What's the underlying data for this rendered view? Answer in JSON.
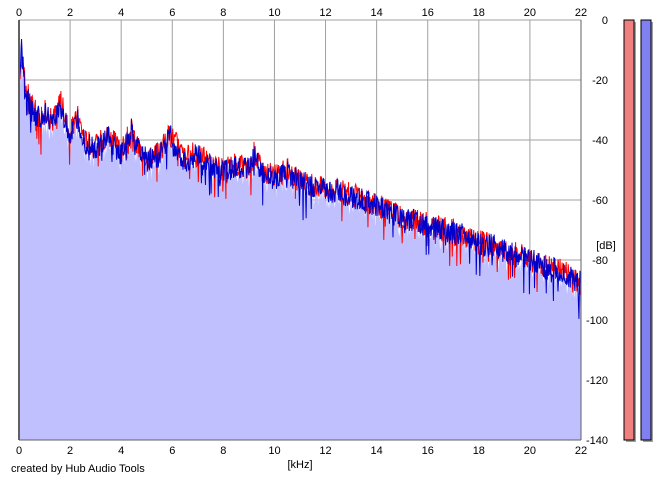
{
  "credit": "created by Hub Audio Tools",
  "chart_data": {
    "type": "line",
    "xlabel": "[kHz]",
    "ylabel": "[dB]",
    "xlim": [
      0,
      22
    ],
    "ylim": [
      -140,
      0
    ],
    "x_ticks": [
      0,
      2,
      4,
      6,
      8,
      10,
      12,
      14,
      16,
      18,
      20,
      22
    ],
    "x_tick_labels": [
      "0",
      "2",
      "4",
      "6",
      "8",
      "10",
      "12",
      "14",
      "16",
      "18",
      "20",
      "22"
    ],
    "y_ticks": [
      0,
      -20,
      -40,
      -60,
      -80,
      -100,
      -120,
      -140
    ],
    "y_tick_labels": [
      "0",
      "-20",
      "-40",
      "-60",
      "-80",
      "-100",
      "-120",
      "-140"
    ],
    "x_axis_top": true,
    "grid": true,
    "fill_color": "#c0c0ff",
    "series": [
      {
        "color": "#ff0000",
        "x": [
          0,
          0.1,
          0.25,
          0.5,
          0.8,
          1,
          1.3,
          1.6,
          2,
          2.3,
          2.6,
          3,
          3.5,
          4,
          4.4,
          4.6,
          5,
          5.5,
          5.9,
          6.1,
          6.5,
          7,
          7.5,
          8,
          8.5,
          9,
          9.2,
          9.5,
          10,
          10.5,
          11,
          11.5,
          12,
          12.5,
          13,
          13.5,
          14,
          14.5,
          15,
          15.5,
          16,
          16.5,
          17,
          17.5,
          18,
          18.5,
          19,
          19.5,
          20,
          20.5,
          21,
          21.5,
          22
        ],
        "y": [
          -20,
          -12,
          -22,
          -28,
          -32,
          -30,
          -34,
          -26,
          -38,
          -32,
          -40,
          -42,
          -38,
          -44,
          -36,
          -42,
          -46,
          -44,
          -38,
          -40,
          -46,
          -44,
          -48,
          -50,
          -48,
          -50,
          -44,
          -50,
          -52,
          -50,
          -54,
          -55,
          -56,
          -57,
          -58,
          -60,
          -62,
          -63,
          -66,
          -67,
          -68,
          -69,
          -70,
          -72,
          -74,
          -75,
          -77,
          -78,
          -80,
          -81,
          -83,
          -84,
          -88
        ]
      },
      {
        "color": "#0000cc",
        "x": [
          0,
          0.1,
          0.25,
          0.5,
          0.8,
          1,
          1.3,
          1.6,
          2,
          2.3,
          2.6,
          3,
          3.5,
          4,
          4.4,
          4.6,
          5,
          5.5,
          5.9,
          6.1,
          6.5,
          7,
          7.5,
          8,
          8.5,
          9,
          9.2,
          9.5,
          10,
          10.5,
          11,
          11.5,
          12,
          12.5,
          13,
          13.5,
          14,
          14.5,
          15,
          15.5,
          16,
          16.5,
          17,
          17.5,
          18,
          18.5,
          19,
          19.5,
          20,
          20.5,
          21,
          21.5,
          22
        ],
        "y": [
          -22,
          -10,
          -24,
          -30,
          -33,
          -31,
          -35,
          -28,
          -39,
          -33,
          -41,
          -43,
          -39,
          -45,
          -37,
          -41,
          -47,
          -45,
          -37,
          -42,
          -47,
          -45,
          -49,
          -51,
          -49,
          -49,
          -45,
          -51,
          -53,
          -51,
          -54,
          -56,
          -57,
          -57,
          -59,
          -60,
          -62,
          -64,
          -66,
          -67,
          -69,
          -70,
          -71,
          -72,
          -75,
          -75,
          -77,
          -79,
          -80,
          -82,
          -83,
          -85,
          -88
        ]
      }
    ],
    "level_meters": [
      {
        "color": "#f08080",
        "value_db": 0
      },
      {
        "color": "#8080f0",
        "value_db": 0
      }
    ]
  }
}
